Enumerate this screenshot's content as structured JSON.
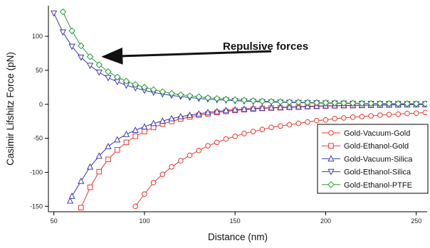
{
  "chart_data": {
    "type": "line",
    "title": "",
    "xlabel": "Distance (nm)",
    "ylabel": "Casimir Lifshitz Force (pN)",
    "xlim": [
      47,
      256
    ],
    "ylim": [
      -158,
      145
    ],
    "xticks": [
      50,
      100,
      150,
      200,
      250
    ],
    "yticks": [
      100,
      50,
      0,
      -50,
      -100,
      -150
    ],
    "grid": false,
    "legend_position": "right",
    "annotation": {
      "text": "Repulsive forces",
      "arrow_from": [
        170,
        78
      ],
      "arrow_to": [
        75,
        70
      ]
    },
    "x": [
      50,
      55,
      60,
      65,
      70,
      75,
      80,
      85,
      90,
      95,
      100,
      105,
      110,
      115,
      120,
      125,
      130,
      135,
      140,
      145,
      150,
      155,
      160,
      165,
      170,
      175,
      180,
      185,
      190,
      195,
      200,
      205,
      210,
      215,
      220,
      225,
      230,
      235,
      240,
      245,
      250,
      255
    ],
    "series": [
      {
        "name": "Gold-Vacuum-Gold",
        "color": "#e8382c",
        "marker": "circle",
        "x": [
          95,
          100,
          105,
          110,
          115,
          120,
          125,
          130,
          135,
          140,
          145,
          150,
          155,
          160,
          165,
          170,
          175,
          180,
          185,
          190,
          195,
          200,
          205,
          210,
          215,
          220,
          225,
          230,
          235,
          240,
          245,
          250,
          255
        ],
        "values": [
          -150,
          -132,
          -115,
          -103,
          -92,
          -83,
          -75,
          -68,
          -61,
          -56,
          -51,
          -47,
          -43,
          -40,
          -37,
          -34,
          -32,
          -30,
          -28,
          -26,
          -24,
          -23,
          -21,
          -20,
          -19,
          -18,
          -17,
          -16,
          -15,
          -14.5,
          -13.5,
          -13,
          -12
        ]
      },
      {
        "name": "Gold-Ethanol-Gold",
        "color": "#e8382c",
        "marker": "square",
        "x": [
          65,
          70,
          75,
          80,
          85,
          90,
          95,
          100,
          105,
          110,
          115,
          120,
          125,
          130,
          135,
          140,
          145,
          150,
          155,
          160,
          165,
          170,
          175,
          180,
          185,
          190,
          195,
          200,
          205,
          210,
          215,
          220,
          225,
          230,
          235,
          240,
          245,
          250,
          255
        ],
        "values": [
          -152,
          -122,
          -99,
          -81,
          -67,
          -56,
          -47,
          -40,
          -34,
          -29,
          -25,
          -21.5,
          -18.5,
          -16,
          -14,
          -12,
          -10.5,
          -9,
          -8,
          -7,
          -6,
          -5.5,
          -5,
          -4.5,
          -4,
          -3.5,
          -3,
          -2.5,
          -2.2,
          -2,
          -1.8,
          -1.6,
          -1.4,
          -1.2,
          -1,
          -0.8,
          -0.6,
          -0.5,
          -0.4
        ]
      },
      {
        "name": "Gold-Vacuum-Silica",
        "color": "#3a3ab0",
        "marker": "triangle-up",
        "x": [
          59,
          60,
          65,
          70,
          75,
          80,
          85,
          90,
          95,
          100,
          105,
          110,
          115,
          120,
          125,
          130,
          135,
          140,
          145,
          150,
          155,
          160,
          165,
          170,
          175,
          180,
          185,
          190,
          195,
          200,
          205,
          210,
          215,
          220,
          225,
          230,
          235,
          240,
          245,
          250,
          255
        ],
        "values": [
          -142,
          -135,
          -113,
          -92,
          -76,
          -62,
          -52,
          -44,
          -38,
          -33,
          -28,
          -24.5,
          -21,
          -18,
          -16,
          -14,
          -12,
          -10.5,
          -9,
          -8,
          -7,
          -6,
          -5.5,
          -5,
          -4.5,
          -4,
          -3.5,
          -3,
          -2.5,
          -2.2,
          -2,
          -1.8,
          -1.6,
          -1.4,
          -1.2,
          -1,
          -0.8,
          -0.6,
          -0.5,
          -0.4,
          -0.3
        ]
      },
      {
        "name": "Gold-Ethanol-Silica",
        "color": "#3a3ab0",
        "marker": "triangle-down",
        "x": [
          50,
          55,
          60,
          65,
          70,
          75,
          80,
          85,
          90,
          95,
          100,
          105,
          110,
          115,
          120,
          125,
          130,
          135,
          140,
          145,
          150,
          155,
          160,
          165,
          170,
          175,
          180,
          185,
          190,
          195,
          200,
          205,
          210,
          215,
          220,
          225,
          230,
          235,
          240,
          245,
          250,
          255
        ],
        "values": [
          134,
          106,
          85,
          69,
          57,
          47,
          39,
          33,
          28,
          24,
          20.5,
          17.5,
          15,
          13,
          11.5,
          10,
          8.5,
          7.5,
          6.5,
          6,
          5.2,
          4.6,
          4,
          3.6,
          3.2,
          2.9,
          2.6,
          2.3,
          2.1,
          1.9,
          1.7,
          1.5,
          1.4,
          1.2,
          1.1,
          1,
          0.9,
          0.8,
          0.7,
          0.6,
          0.5,
          0.5
        ]
      },
      {
        "name": "Gold-Ethanol-PTFE",
        "color": "#2a9a3a",
        "marker": "diamond",
        "x": [
          55,
          60,
          65,
          70,
          75,
          80,
          85,
          90,
          95,
          100,
          105,
          110,
          115,
          120,
          125,
          130,
          135,
          140,
          145,
          150,
          155,
          160,
          165,
          170,
          175,
          180,
          185,
          190,
          195,
          200,
          205,
          210,
          215,
          220,
          225,
          230,
          235,
          240,
          245,
          250,
          255
        ],
        "values": [
          136,
          108,
          86,
          70,
          58,
          48,
          40,
          34,
          29,
          25,
          21.5,
          18.5,
          16,
          14,
          12.5,
          11,
          9.5,
          8.5,
          7.5,
          6.7,
          6,
          5.3,
          4.7,
          4.2,
          3.8,
          3.4,
          3.1,
          2.8,
          2.5,
          2.3,
          2.1,
          1.9,
          1.7,
          1.5,
          1.4,
          1.3,
          1.2,
          1.1,
          1,
          0.9,
          0.8
        ]
      }
    ]
  }
}
